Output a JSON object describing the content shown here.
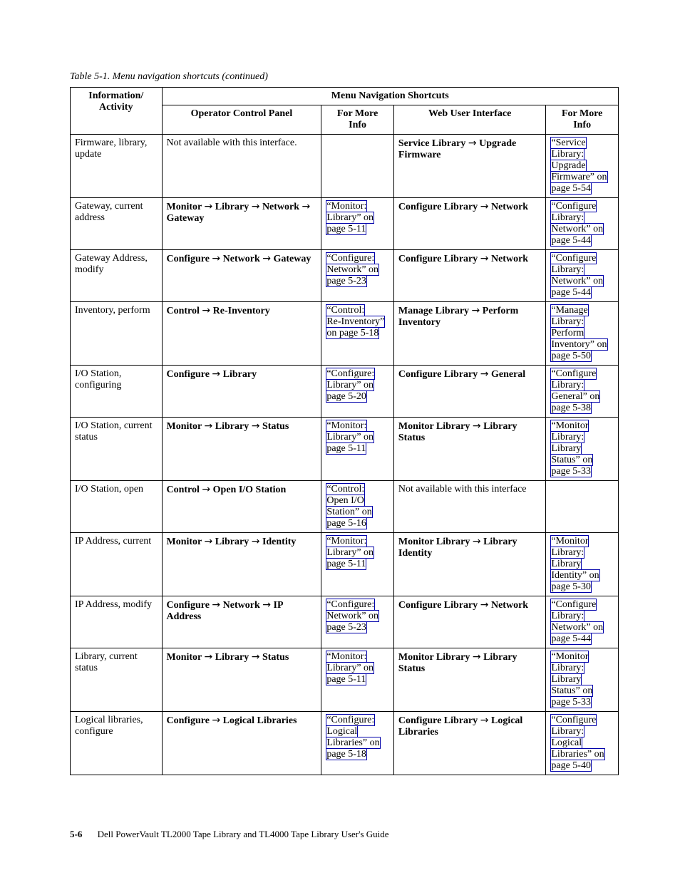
{
  "caption": "Table 5-1. Menu navigation shortcuts  (continued)",
  "arrow_glyph": "→",
  "headers": {
    "top_span": "Menu Navigation Shortcuts",
    "info": "Information/ Activity",
    "ocp": "Operator Control Panel",
    "more1a": "For More",
    "more1b": "Info",
    "wui": "Web User Interface",
    "more2a": "For More",
    "more2b": "Info"
  },
  "rows": [
    {
      "info": "Firmware, library, update",
      "ocp_plain": "Not available with this interface.",
      "more1_words": [],
      "wui_parts": [
        "Service Library",
        "Upgrade Firmware"
      ],
      "more2_words": [
        "“Service",
        "Library:",
        "Upgrade",
        "Firmware” on",
        "page 5-54"
      ]
    },
    {
      "info": "Gateway, current address",
      "ocp_parts": [
        "Monitor",
        "Library",
        "Network",
        "Gateway"
      ],
      "more1_words": [
        "“Monitor:",
        "Library” on",
        "page 5-11"
      ],
      "wui_parts": [
        "Configure Library",
        "Network"
      ],
      "more2_words": [
        "“Configure",
        "Library:",
        "Network” on",
        "page 5-44"
      ]
    },
    {
      "info": "Gateway Address, modify",
      "ocp_parts": [
        "Configure",
        "Network",
        "Gateway"
      ],
      "more1_words": [
        "“Configure:",
        "Network” on",
        "page 5-23"
      ],
      "wui_parts": [
        "Configure Library",
        "Network"
      ],
      "more2_words": [
        "“Configure",
        "Library:",
        "Network” on",
        "page 5-44"
      ]
    },
    {
      "info": "Inventory, perform",
      "ocp_parts": [
        "Control",
        "Re-Inventory"
      ],
      "more1_words": [
        "“Control:",
        "Re-Inventory”",
        "on page 5-18"
      ],
      "wui_parts": [
        "Manage Library",
        "Perform Inventory"
      ],
      "more2_words": [
        "“Manage",
        "Library:",
        "Perform",
        "Inventory” on",
        "page 5-50"
      ]
    },
    {
      "info": "I/O Station, configuring",
      "ocp_parts": [
        "Configure",
        "Library"
      ],
      "more1_words": [
        "“Configure:",
        "Library” on",
        "page 5-20"
      ],
      "wui_parts": [
        "Configure Library",
        "General"
      ],
      "more2_words": [
        "“Configure",
        "Library:",
        "General” on",
        "page 5-38"
      ]
    },
    {
      "info": "I/O Station, current status",
      "ocp_parts": [
        "Monitor",
        "Library",
        "Status"
      ],
      "more1_words": [
        "“Monitor:",
        "Library” on",
        "page 5-11"
      ],
      "wui_parts": [
        "Monitor Library",
        "Library Status"
      ],
      "more2_words": [
        "“Monitor",
        "Library:",
        "Library",
        "Status” on",
        "page 5-33"
      ]
    },
    {
      "info": "I/O Station, open",
      "ocp_parts": [
        "Control",
        "Open I/O Station"
      ],
      "more1_words": [
        "“Control:",
        "Open I/O",
        "Station” on",
        "page 5-16"
      ],
      "wui_plain": "Not available with this interface",
      "more2_words": []
    },
    {
      "info": "IP Address, current",
      "ocp_parts": [
        "Monitor",
        "Library",
        "Identity"
      ],
      "more1_words": [
        "“Monitor:",
        "Library” on",
        "page 5-11"
      ],
      "wui_parts": [
        "Monitor Library",
        "Library Identity"
      ],
      "more2_words": [
        "“Monitor",
        "Library:",
        "Library",
        "Identity” on",
        "page 5-30"
      ]
    },
    {
      "info": "IP Address, modify",
      "ocp_parts": [
        "Configure",
        "Network",
        "IP Address"
      ],
      "more1_words": [
        "“Configure:",
        "Network” on",
        "page 5-23"
      ],
      "wui_parts": [
        "Configure Library",
        "Network"
      ],
      "more2_words": [
        "“Configure",
        "Library:",
        "Network” on",
        "page 5-44"
      ]
    },
    {
      "info": "Library, current status",
      "ocp_parts": [
        "Monitor",
        "Library",
        "Status"
      ],
      "more1_words": [
        "“Monitor:",
        "Library” on",
        "page 5-11"
      ],
      "wui_parts": [
        "Monitor Library",
        "Library Status"
      ],
      "more2_words": [
        "“Monitor",
        "Library:",
        "Library",
        "Status” on",
        "page 5-33"
      ]
    },
    {
      "info": "Logical libraries, configure",
      "ocp_parts": [
        "Configure",
        "Logical Libraries"
      ],
      "more1_words": [
        "“Configure:",
        "Logical",
        "Libraries” on",
        "page 5-18"
      ],
      "wui_parts": [
        "Configure Library",
        "Logical Libraries"
      ],
      "more2_words": [
        "“Configure",
        "Library:",
        "Logical",
        "Libraries” on",
        "page 5-40"
      ]
    }
  ],
  "footer": {
    "page_number": "5-6",
    "text": "Dell PowerVault TL2000 Tape Library and TL4000 Tape Library User's Guide"
  }
}
